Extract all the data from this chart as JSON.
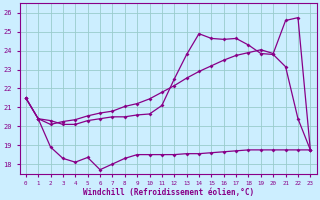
{
  "xlabel": "Windchill (Refroidissement éolien,°C)",
  "bg_color": "#cceeff",
  "line_color": "#880088",
  "grid_color": "#99cccc",
  "xlim": [
    -0.5,
    23.5
  ],
  "ylim": [
    17.5,
    26.5
  ],
  "xticks": [
    0,
    1,
    2,
    3,
    4,
    5,
    6,
    7,
    8,
    9,
    10,
    11,
    12,
    13,
    14,
    15,
    16,
    17,
    18,
    19,
    20,
    21,
    22,
    23
  ],
  "yticks": [
    18,
    19,
    20,
    21,
    22,
    23,
    24,
    25,
    26
  ],
  "line1_x": [
    0,
    1,
    2,
    3,
    4,
    5,
    6,
    7,
    8,
    9,
    10,
    11,
    12,
    13,
    14,
    15,
    16,
    17,
    18,
    19,
    20,
    21,
    22,
    23
  ],
  "line1_y": [
    21.5,
    20.4,
    18.9,
    18.3,
    18.1,
    18.35,
    17.7,
    18.0,
    18.3,
    18.5,
    18.5,
    18.5,
    18.5,
    18.55,
    18.55,
    18.6,
    18.65,
    18.7,
    18.75,
    18.75,
    18.75,
    18.75,
    18.75,
    18.75
  ],
  "line2_x": [
    0,
    1,
    2,
    3,
    4,
    5,
    6,
    7,
    8,
    9,
    10,
    11,
    12,
    13,
    14,
    15,
    16,
    17,
    18,
    19,
    20,
    21,
    22,
    23
  ],
  "line2_y": [
    21.5,
    20.4,
    20.3,
    20.1,
    20.1,
    20.3,
    20.4,
    20.5,
    20.5,
    20.6,
    20.65,
    21.1,
    22.5,
    23.8,
    24.9,
    24.65,
    24.6,
    24.65,
    24.3,
    23.85,
    23.8,
    23.15,
    20.4,
    18.75
  ],
  "line3_x": [
    0,
    1,
    2,
    3,
    4,
    5,
    6,
    7,
    8,
    9,
    10,
    11,
    12,
    13,
    14,
    15,
    16,
    17,
    18,
    19,
    20,
    21,
    22,
    23
  ],
  "line3_y": [
    21.5,
    20.4,
    20.1,
    20.25,
    20.35,
    20.55,
    20.7,
    20.8,
    21.05,
    21.2,
    21.45,
    21.8,
    22.15,
    22.55,
    22.9,
    23.2,
    23.5,
    23.75,
    23.9,
    24.05,
    23.85,
    25.6,
    25.75,
    18.75
  ]
}
